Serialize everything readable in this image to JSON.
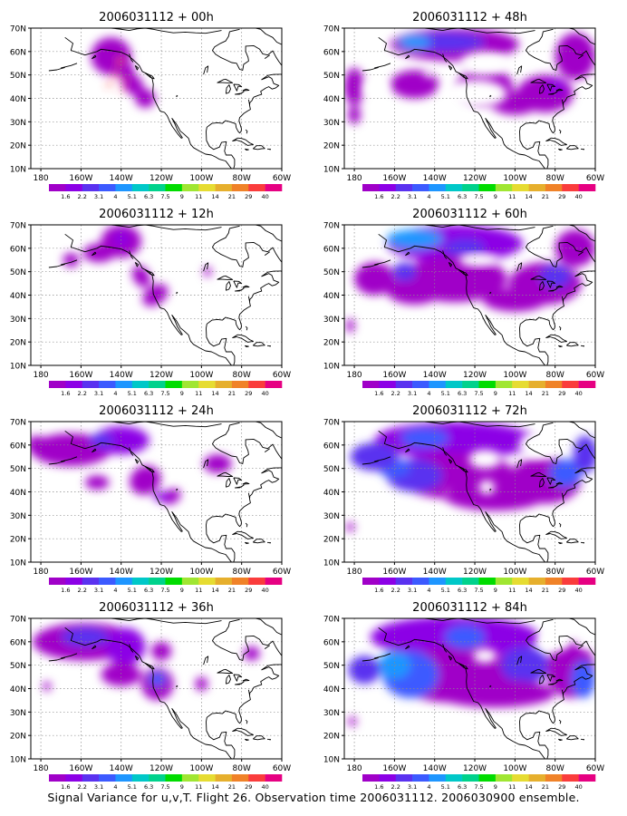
{
  "figure": {
    "caption": "Signal Variance for u,v,T. Flight 26. Observation time 2006031112. 2006030900 ensemble."
  },
  "axes": {
    "lat_labels": [
      "70N",
      "60N",
      "50N",
      "40N",
      "30N",
      "20N",
      "10N"
    ],
    "lat_values": [
      70,
      60,
      50,
      40,
      30,
      20,
      10
    ],
    "lon_labels": [
      "180",
      "160W",
      "140W",
      "120W",
      "100W",
      "80W",
      "60W"
    ],
    "lon_values": [
      -180,
      -160,
      -140,
      -120,
      -100,
      -80,
      -60
    ],
    "lon_range": [
      -185,
      -60
    ],
    "lat_range": [
      10,
      70
    ]
  },
  "colorbar": {
    "labels": [
      "1.6",
      "2.2",
      "3.1",
      "4",
      "5.1",
      "6.3",
      "7.5",
      "9",
      "11",
      "14",
      "21",
      "29",
      "40"
    ],
    "colors": [
      "#a000c8",
      "#8c00e6",
      "#5a32f0",
      "#3c5aff",
      "#1e96ff",
      "#00c8c8",
      "#00d28c",
      "#00dc00",
      "#a0e632",
      "#e6dc32",
      "#e6af2d",
      "#f08228",
      "#fa3c3c",
      "#e60082"
    ]
  },
  "panels": [
    {
      "title": "2006031112 + 00h",
      "level": 0
    },
    {
      "title": "2006031112 + 48h",
      "level": 4
    },
    {
      "title": "2006031112 + 12h",
      "level": 1
    },
    {
      "title": "2006031112 + 60h",
      "level": 5
    },
    {
      "title": "2006031112 + 24h",
      "level": 2
    },
    {
      "title": "2006031112 + 72h",
      "level": 6
    },
    {
      "title": "2006031112 + 36h",
      "level": 3
    },
    {
      "title": "2006031112 + 84h",
      "level": 7
    }
  ],
  "styles": {
    "grid_color": "#8c8c8c",
    "coast_color": "#000000"
  }
}
